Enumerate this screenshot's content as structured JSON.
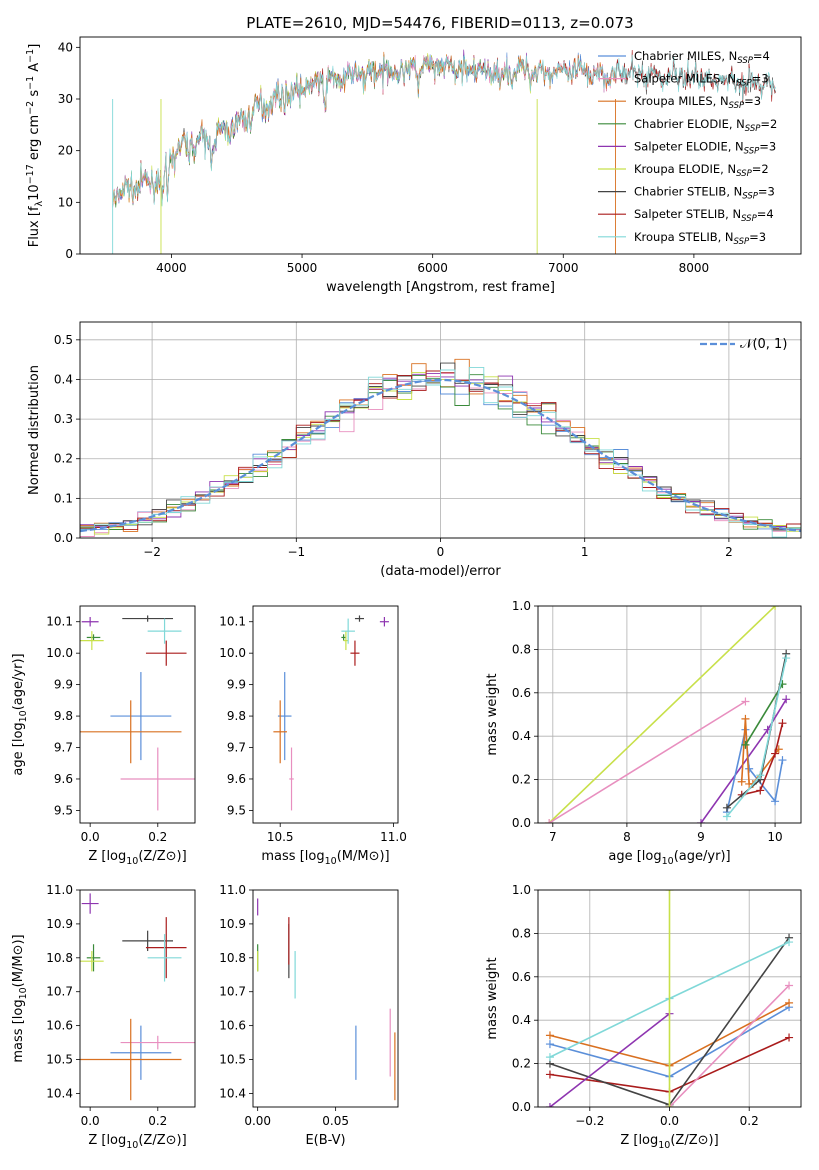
{
  "title": "PLATE=2610, MJD=54476, FIBERID=0113, z=0.073",
  "colors": {
    "Chabrier MILES": "#5b8fd9",
    "Salpeter MILES": "#e88fbf",
    "Kroupa MILES": "#d97020",
    "Chabrier ELODIE": "#3a8a3a",
    "Salpeter ELODIE": "#8e35b0",
    "Kroupa ELODIE": "#c8e04a",
    "Chabrier STELIB": "#444444",
    "Salpeter STELIB": "#aa1c1c",
    "Kroupa STELIB": "#80d8d8",
    "gauss": "#5b8fd9"
  },
  "chart_data": [
    {
      "id": "spectrum",
      "type": "line",
      "xlabel": "wavelength [Angstrom, rest frame]",
      "ylabel": "Flux [f",
      "ylabel_sub": "λ",
      "ylabel_mid": "10",
      "ylabel_sup1": "−17",
      "ylabel_mid2": " erg cm",
      "ylabel_sup2": "−2",
      "ylabel_mid3": " s",
      "ylabel_sup3": "−1",
      "ylabel_mid4": " A",
      "ylabel_sup4": "−1",
      "ylabel_end": "]",
      "xlim": [
        3300,
        8820
      ],
      "ylim": [
        0,
        42
      ],
      "xticks": [
        4000,
        5000,
        6000,
        7000,
        8000
      ],
      "yticks": [
        0,
        10,
        20,
        30,
        40
      ],
      "continuum": {
        "x": [
          3550,
          3700,
          3850,
          3950,
          4000,
          4100,
          4300,
          4500,
          4700,
          4900,
          5100,
          5300,
          5500,
          5700,
          5900,
          6100,
          6300,
          6500,
          6700,
          6900,
          7100,
          7300,
          7500,
          7700,
          7900,
          8100,
          8300,
          8500,
          8630
        ],
        "y": [
          11,
          13,
          14,
          15,
          19,
          21,
          22,
          25,
          29,
          31,
          33,
          34,
          35,
          35.5,
          36,
          36,
          35.5,
          35,
          35.5,
          35.5,
          35,
          35,
          35,
          34.5,
          34.5,
          34,
          33.5,
          33,
          32
        ]
      },
      "legend": [
        {
          "label": "Chabrier MILES, N",
          "sub": "SSP",
          "suffix": "=4",
          "model": "Chabrier MILES"
        },
        {
          "label": "Salpeter MILES, N",
          "sub": "SSP",
          "suffix": "=3",
          "model": "Salpeter MILES"
        },
        {
          "label": "Kroupa MILES, N",
          "sub": "SSP",
          "suffix": "=3",
          "model": "Kroupa MILES"
        },
        {
          "label": "Chabrier ELODIE, N",
          "sub": "SSP",
          "suffix": "=2",
          "model": "Chabrier ELODIE"
        },
        {
          "label": "Salpeter ELODIE, N",
          "sub": "SSP",
          "suffix": "=3",
          "model": "Salpeter ELODIE"
        },
        {
          "label": "Kroupa ELODIE, N",
          "sub": "SSP",
          "suffix": "=2",
          "model": "Kroupa ELODIE"
        },
        {
          "label": "Chabrier STELIB, N",
          "sub": "SSP",
          "suffix": "=3",
          "model": "Chabrier STELIB"
        },
        {
          "label": "Salpeter STELIB, N",
          "sub": "SSP",
          "suffix": "=4",
          "model": "Salpeter STELIB"
        },
        {
          "label": "Kroupa STELIB, N",
          "sub": "SSP",
          "suffix": "=3",
          "model": "Kroupa STELIB"
        }
      ]
    },
    {
      "id": "hist",
      "type": "bar",
      "xlabel": "(data-model)/error",
      "ylabel": "Normed distribution",
      "xlim": [
        -2.5,
        2.5
      ],
      "ylim": [
        0,
        0.545
      ],
      "xticks": [
        -2,
        -1,
        0,
        1,
        2
      ],
      "yticks": [
        0.0,
        0.1,
        0.2,
        0.3,
        0.4,
        0.5
      ],
      "legend": "𝒩(0, 1)",
      "legend_loc": "upper right",
      "grid": true
    },
    {
      "id": "age_vs_Z",
      "type": "scatter",
      "xlabel": "Z [log",
      "xlabel_sub": "10",
      "xlabel_end": "(Z/Z⊙)]",
      "ylabel": "age  [log",
      "ylabel_sub": "10",
      "ylabel_end": "(age/yr)]",
      "xlim": [
        -0.03,
        0.31
      ],
      "ylim": [
        9.46,
        10.15
      ],
      "xticks": [
        0.0,
        0.2
      ],
      "yticks": [
        9.5,
        9.6,
        9.7,
        9.8,
        9.9,
        10.0,
        10.1
      ],
      "points": [
        {
          "model": "Chabrier MILES",
          "x": 0.15,
          "y": 9.8,
          "ex": 0.09,
          "ey": 0.14
        },
        {
          "model": "Salpeter MILES",
          "x": 0.2,
          "y": 9.6,
          "ex": 0.11,
          "ey": 0.1
        },
        {
          "model": "Kroupa MILES",
          "x": 0.12,
          "y": 9.75,
          "ex": 0.15,
          "ey": 0.1
        },
        {
          "model": "Chabrier ELODIE",
          "x": 0.01,
          "y": 10.05,
          "ex": 0.02,
          "ey": 0.01
        },
        {
          "model": "Salpeter ELODIE",
          "x": 0.0,
          "y": 10.1,
          "ex": 0.025,
          "ey": 0.015
        },
        {
          "model": "Kroupa ELODIE",
          "x": 0.005,
          "y": 10.04,
          "ex": 0.035,
          "ey": 0.03
        },
        {
          "model": "Chabrier STELIB",
          "x": 0.17,
          "y": 10.11,
          "ex": 0.075,
          "ey": 0.01
        },
        {
          "model": "Salpeter STELIB",
          "x": 0.225,
          "y": 10.0,
          "ex": 0.06,
          "ey": 0.04
        },
        {
          "model": "Kroupa STELIB",
          "x": 0.22,
          "y": 10.07,
          "ex": 0.05,
          "ey": 0.04
        }
      ]
    },
    {
      "id": "age_vs_mass",
      "type": "scatter",
      "xlabel": "mass [log",
      "xlabel_sub": "10",
      "xlabel_end": "(M/M⊙)]",
      "ylabel": "",
      "xlim": [
        10.38,
        11.02
      ],
      "ylim": [
        9.46,
        10.15
      ],
      "xticks": [
        10.5,
        11.0
      ],
      "yticks": [
        9.5,
        9.6,
        9.7,
        9.8,
        9.9,
        10.0,
        10.1
      ],
      "points": [
        {
          "model": "Chabrier MILES",
          "x": 10.52,
          "y": 9.8,
          "ex": 0.03,
          "ey": 0.14
        },
        {
          "model": "Salpeter MILES",
          "x": 10.55,
          "y": 9.6,
          "ex": 0.01,
          "ey": 0.1
        },
        {
          "model": "Kroupa MILES",
          "x": 10.5,
          "y": 9.75,
          "ex": 0.03,
          "ey": 0.1
        },
        {
          "model": "Chabrier ELODIE",
          "x": 10.78,
          "y": 10.05,
          "ex": 0.01,
          "ey": 0.01
        },
        {
          "model": "Salpeter ELODIE",
          "x": 10.96,
          "y": 10.1,
          "ex": 0.02,
          "ey": 0.015
        },
        {
          "model": "Kroupa ELODIE",
          "x": 10.79,
          "y": 10.04,
          "ex": 0.01,
          "ey": 0.03
        },
        {
          "model": "Chabrier STELIB",
          "x": 10.85,
          "y": 10.11,
          "ex": 0.02,
          "ey": 0.01
        },
        {
          "model": "Salpeter STELIB",
          "x": 10.83,
          "y": 10.0,
          "ex": 0.02,
          "ey": 0.04
        },
        {
          "model": "Kroupa STELIB",
          "x": 10.8,
          "y": 10.07,
          "ex": 0.03,
          "ey": 0.04
        }
      ]
    },
    {
      "id": "massweight_vs_age",
      "type": "line",
      "xlabel": "age  [log",
      "xlabel_sub": "10",
      "xlabel_end": "(age/yr)]",
      "ylabel": "mass weight",
      "xlim": [
        6.8,
        10.35
      ],
      "ylim": [
        0,
        1.0
      ],
      "xticks": [
        7,
        8,
        9,
        10
      ],
      "yticks": [
        0.0,
        0.2,
        0.4,
        0.6,
        0.8,
        1.0
      ],
      "grid": true,
      "series": [
        {
          "model": "Kroupa ELODIE",
          "x": [
            6.95,
            10.0
          ],
          "y": [
            0.0,
            1.0
          ]
        },
        {
          "model": "Salpeter MILES",
          "x": [
            6.95,
            9.6
          ],
          "y": [
            0.0,
            0.56
          ]
        },
        {
          "model": "Salpeter ELODIE",
          "x": [
            9.0,
            9.9,
            10.15
          ],
          "y": [
            0.0,
            0.43,
            0.57
          ]
        },
        {
          "model": "Chabrier MILES",
          "x": [
            9.35,
            9.6,
            9.65,
            10.0,
            10.1
          ],
          "y": [
            0.05,
            0.43,
            0.25,
            0.1,
            0.29
          ]
        },
        {
          "model": "Kroupa MILES",
          "x": [
            9.55,
            9.6,
            9.65,
            9.7,
            10.05
          ],
          "y": [
            0.19,
            0.48,
            0.18,
            0.18,
            0.34
          ]
        },
        {
          "model": "Salpeter STELIB",
          "x": [
            9.55,
            9.8,
            10.0,
            10.1
          ],
          "y": [
            0.13,
            0.15,
            0.32,
            0.46
          ]
        },
        {
          "model": "Chabrier ELODIE",
          "x": [
            9.6,
            10.1
          ],
          "y": [
            0.36,
            0.64
          ]
        },
        {
          "model": "Chabrier STELIB",
          "x": [
            9.35,
            9.8,
            10.15
          ],
          "y": [
            0.07,
            0.2,
            0.78
          ]
        },
        {
          "model": "Kroupa STELIB",
          "x": [
            9.35,
            9.8,
            10.15
          ],
          "y": [
            0.03,
            0.22,
            0.76
          ]
        }
      ]
    },
    {
      "id": "mass_vs_Z",
      "type": "scatter",
      "xlabel": "Z [log",
      "xlabel_sub": "10",
      "xlabel_end": "(Z/Z⊙)]",
      "ylabel": "mass [log",
      "ylabel_sub": "10",
      "ylabel_end": "(M/M⊙)]",
      "xlim": [
        -0.03,
        0.31
      ],
      "ylim": [
        10.36,
        11.0
      ],
      "xticks": [
        0.0,
        0.2
      ],
      "yticks": [
        10.4,
        10.5,
        10.6,
        10.7,
        10.8,
        10.9,
        11.0
      ],
      "points": [
        {
          "model": "Chabrier MILES",
          "x": 0.15,
          "y": 10.52,
          "ex": 0.09,
          "ey": 0.08
        },
        {
          "model": "Salpeter MILES",
          "x": 0.2,
          "y": 10.55,
          "ex": 0.11,
          "ey": 0.02
        },
        {
          "model": "Kroupa MILES",
          "x": 0.12,
          "y": 10.5,
          "ex": 0.15,
          "ey": 0.12
        },
        {
          "model": "Chabrier ELODIE",
          "x": 0.01,
          "y": 10.8,
          "ex": 0.02,
          "ey": 0.04
        },
        {
          "model": "Salpeter ELODIE",
          "x": 0.0,
          "y": 10.96,
          "ex": 0.025,
          "ey": 0.03
        },
        {
          "model": "Kroupa ELODIE",
          "x": 0.005,
          "y": 10.79,
          "ex": 0.035,
          "ey": 0.03
        },
        {
          "model": "Chabrier STELIB",
          "x": 0.17,
          "y": 10.85,
          "ex": 0.075,
          "ey": 0.03
        },
        {
          "model": "Salpeter STELIB",
          "x": 0.225,
          "y": 10.83,
          "ex": 0.06,
          "ey": 0.09
        },
        {
          "model": "Kroupa STELIB",
          "x": 0.22,
          "y": 10.8,
          "ex": 0.05,
          "ey": 0.07
        }
      ]
    },
    {
      "id": "mass_vs_ebv",
      "type": "scatter",
      "xlabel": "E(B-V)",
      "ylabel": "",
      "xlim": [
        -0.003,
        0.09
      ],
      "ylim": [
        10.36,
        11.0
      ],
      "xticks": [
        0.0,
        0.05
      ],
      "yticks": [
        10.4,
        10.5,
        10.6,
        10.7,
        10.8,
        10.9,
        11.0
      ],
      "points": [
        {
          "model": "Chabrier MILES",
          "x": 0.063,
          "y": 10.52,
          "ex": 0,
          "ey": 0.08
        },
        {
          "model": "Salpeter MILES",
          "x": 0.085,
          "y": 10.55,
          "ex": 0,
          "ey": 0.1
        },
        {
          "model": "Kroupa MILES",
          "x": 0.088,
          "y": 10.48,
          "ex": 0,
          "ey": 0.1
        },
        {
          "model": "Chabrier ELODIE",
          "x": 0.0,
          "y": 10.8,
          "ex": 0,
          "ey": 0.04
        },
        {
          "model": "Salpeter ELODIE",
          "x": 0.0,
          "y": 10.95,
          "ex": 0,
          "ey": 0.025
        },
        {
          "model": "Kroupa ELODIE",
          "x": 0.0,
          "y": 10.79,
          "ex": 0,
          "ey": 0.03
        },
        {
          "model": "Chabrier STELIB",
          "x": 0.02,
          "y": 10.82,
          "ex": 0,
          "ey": 0.08
        },
        {
          "model": "Salpeter STELIB",
          "x": 0.02,
          "y": 10.85,
          "ex": 0,
          "ey": 0.07
        },
        {
          "model": "Kroupa STELIB",
          "x": 0.024,
          "y": 10.75,
          "ex": 0,
          "ey": 0.07
        }
      ]
    },
    {
      "id": "massweight_vs_Z",
      "type": "line",
      "xlabel": "Z [log",
      "xlabel_sub": "10",
      "xlabel_end": "(Z/Z⊙)]",
      "ylabel": "mass weight",
      "xlim": [
        -0.33,
        0.33
      ],
      "ylim": [
        0,
        1.0
      ],
      "xticks": [
        -0.2,
        0.0,
        0.2
      ],
      "yticks": [
        0.0,
        0.2,
        0.4,
        0.6,
        0.8,
        1.0
      ],
      "grid": true,
      "series": [
        {
          "model": "Chabrier MILES",
          "x": [
            -0.3,
            0.0,
            0.3
          ],
          "y": [
            0.29,
            0.14,
            0.46
          ]
        },
        {
          "model": "Kroupa MILES",
          "x": [
            -0.3,
            0.0,
            0.3
          ],
          "y": [
            0.33,
            0.19,
            0.48
          ]
        },
        {
          "model": "Salpeter STELIB",
          "x": [
            -0.3,
            0.0,
            0.3
          ],
          "y": [
            0.15,
            0.07,
            0.32
          ]
        },
        {
          "model": "Chabrier STELIB",
          "x": [
            -0.3,
            0.0,
            0.3
          ],
          "y": [
            0.2,
            0.01,
            0.78
          ]
        },
        {
          "model": "Kroupa STELIB",
          "x": [
            -0.3,
            0.0,
            0.3
          ],
          "y": [
            0.23,
            0.5,
            0.76
          ]
        },
        {
          "model": "Salpeter ELODIE",
          "x": [
            -0.3,
            0.0
          ],
          "y": [
            0.0,
            0.43
          ]
        },
        {
          "model": "Salpeter MILES",
          "x": [
            0.0,
            0.3
          ],
          "y": [
            0.0,
            0.56
          ]
        },
        {
          "model": "Kroupa ELODIE",
          "x": [
            0.0,
            0.0
          ],
          "y": [
            0.0,
            1.0
          ]
        }
      ]
    }
  ]
}
